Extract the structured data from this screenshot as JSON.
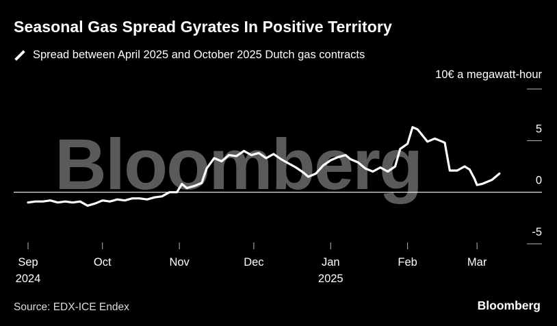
{
  "header": {
    "title": "Seasonal Gas Spread Gyrates In Positive Territory",
    "legend_label": "Spread between April 2025 and October 2025 Dutch gas contracts",
    "unit_label": "10€ a megawatt-hour"
  },
  "footer": {
    "source": "Source: EDX-ICE Endex",
    "brand": "Bloomberg"
  },
  "watermark_text": "Bloomberg",
  "colors": {
    "background": "#000000",
    "line": "#ffffff",
    "grid": "#bbbbbb",
    "watermark": "#5a5a5a"
  },
  "chart_data": {
    "type": "line",
    "title": "Seasonal Gas Spread Gyrates In Positive Territory",
    "ylabel": "10€ a megawatt-hour",
    "ylim": [
      -5,
      10
    ],
    "y_ticks": [
      -5,
      0,
      5,
      10
    ],
    "y_tick_labels": [
      "-5",
      "0",
      "5",
      ""
    ],
    "x_range": [
      "2024-09-01",
      "2025-03-12"
    ],
    "x_ticks": [
      {
        "date": "2024-09-01",
        "label": "Sep",
        "sub": "2024"
      },
      {
        "date": "2024-10-01",
        "label": "Oct",
        "sub": ""
      },
      {
        "date": "2024-11-01",
        "label": "Nov",
        "sub": ""
      },
      {
        "date": "2024-12-01",
        "label": "Dec",
        "sub": ""
      },
      {
        "date": "2025-01-01",
        "label": "Jan",
        "sub": "2025"
      },
      {
        "date": "2025-02-01",
        "label": "Feb",
        "sub": ""
      },
      {
        "date": "2025-03-01",
        "label": "Mar",
        "sub": ""
      }
    ],
    "grid": false,
    "series": [
      {
        "name": "Spread between April 2025 and October 2025 Dutch gas contracts",
        "points": [
          [
            "2024-09-01",
            -1.0
          ],
          [
            "2024-09-04",
            -0.9
          ],
          [
            "2024-09-07",
            -0.9
          ],
          [
            "2024-09-10",
            -0.8
          ],
          [
            "2024-09-13",
            -1.0
          ],
          [
            "2024-09-16",
            -0.9
          ],
          [
            "2024-09-19",
            -1.0
          ],
          [
            "2024-09-22",
            -0.9
          ],
          [
            "2024-09-25",
            -1.3
          ],
          [
            "2024-09-28",
            -1.1
          ],
          [
            "2024-10-01",
            -0.8
          ],
          [
            "2024-10-04",
            -0.9
          ],
          [
            "2024-10-07",
            -0.7
          ],
          [
            "2024-10-10",
            -0.8
          ],
          [
            "2024-10-13",
            -0.6
          ],
          [
            "2024-10-16",
            -0.6
          ],
          [
            "2024-10-19",
            -0.7
          ],
          [
            "2024-10-22",
            -0.5
          ],
          [
            "2024-10-25",
            -0.4
          ],
          [
            "2024-10-28",
            0.0
          ],
          [
            "2024-10-31",
            0.0
          ],
          [
            "2024-11-02",
            0.8
          ],
          [
            "2024-11-04",
            0.4
          ],
          [
            "2024-11-07",
            0.6
          ],
          [
            "2024-11-10",
            0.9
          ],
          [
            "2024-11-12",
            2.3
          ],
          [
            "2024-11-15",
            3.3
          ],
          [
            "2024-11-18",
            3.0
          ],
          [
            "2024-11-21",
            3.6
          ],
          [
            "2024-11-24",
            3.5
          ],
          [
            "2024-11-27",
            4.0
          ],
          [
            "2024-11-30",
            3.6
          ],
          [
            "2024-12-03",
            3.8
          ],
          [
            "2024-12-06",
            3.3
          ],
          [
            "2024-12-09",
            3.7
          ],
          [
            "2024-12-12",
            3.2
          ],
          [
            "2024-12-15",
            2.8
          ],
          [
            "2024-12-18",
            2.4
          ],
          [
            "2024-12-21",
            1.9
          ],
          [
            "2024-12-23",
            1.5
          ],
          [
            "2024-12-26",
            1.8
          ],
          [
            "2024-12-29",
            2.6
          ],
          [
            "2025-01-01",
            3.1
          ],
          [
            "2025-01-04",
            3.4
          ],
          [
            "2025-01-07",
            3.6
          ],
          [
            "2025-01-09",
            3.2
          ],
          [
            "2025-01-12",
            2.9
          ],
          [
            "2025-01-15",
            2.3
          ],
          [
            "2025-01-18",
            2.0
          ],
          [
            "2025-01-21",
            2.4
          ],
          [
            "2025-01-24",
            2.0
          ],
          [
            "2025-01-27",
            2.5
          ],
          [
            "2025-01-29",
            4.2
          ],
          [
            "2025-02-01",
            4.7
          ],
          [
            "2025-02-03",
            6.3
          ],
          [
            "2025-02-05",
            6.1
          ],
          [
            "2025-02-07",
            5.5
          ],
          [
            "2025-02-09",
            4.9
          ],
          [
            "2025-02-12",
            5.2
          ],
          [
            "2025-02-14",
            5.0
          ],
          [
            "2025-02-16",
            4.8
          ],
          [
            "2025-02-18",
            2.1
          ],
          [
            "2025-02-21",
            2.1
          ],
          [
            "2025-02-24",
            2.5
          ],
          [
            "2025-02-26",
            2.2
          ],
          [
            "2025-02-28",
            1.3
          ],
          [
            "2025-03-01",
            0.7
          ],
          [
            "2025-03-03",
            0.8
          ],
          [
            "2025-03-05",
            1.0
          ],
          [
            "2025-03-07",
            1.2
          ],
          [
            "2025-03-10",
            1.8
          ]
        ]
      }
    ]
  }
}
